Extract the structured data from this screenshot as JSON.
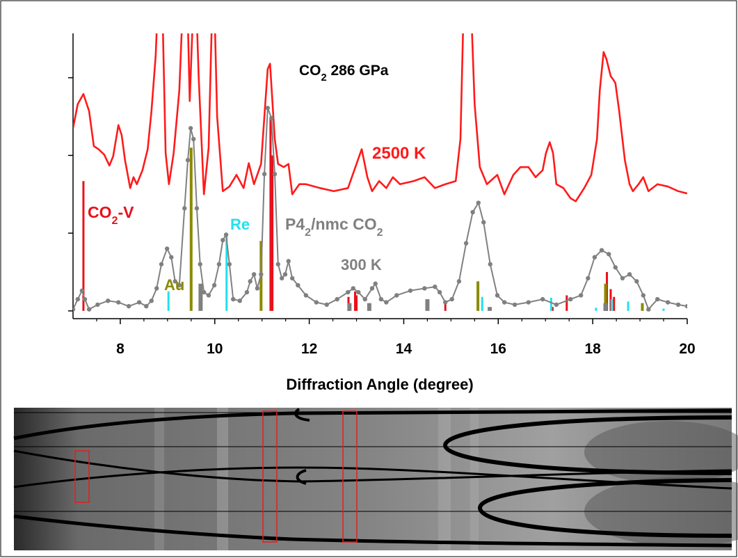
{
  "chart_data": {
    "type": "line",
    "title_parts": [
      "CO",
      "2",
      " 286 GPa"
    ],
    "xlabel": "Diffraction Angle (degree)",
    "xlim": [
      7,
      20
    ],
    "xticks": [
      8,
      10,
      12,
      14,
      16,
      18,
      20
    ],
    "x_minor_ticks": [
      7.5,
      8.5,
      9,
      9.5,
      10.5,
      11,
      11.5,
      12.5,
      13,
      13.5,
      14.5,
      15,
      15.5,
      16.5,
      17,
      17.5,
      18.5,
      19,
      19.5
    ],
    "ylim": [
      -0.1,
      3.57
    ],
    "yticks": [
      0,
      1,
      2,
      3
    ],
    "series": [
      {
        "name": "2500 K",
        "color": "#ff1a1a",
        "markers": false,
        "x": [
          7.0,
          7.1,
          7.22,
          7.34,
          7.44,
          7.54,
          7.66,
          7.77,
          7.85,
          7.96,
          8.03,
          8.1,
          8.21,
          8.28,
          8.35,
          8.47,
          8.58,
          8.66,
          8.75,
          8.83,
          8.87,
          8.96,
          9.03,
          9.13,
          9.25,
          9.36,
          9.4,
          9.47,
          9.58,
          9.66,
          9.77,
          9.87,
          9.97,
          10.05,
          10.17,
          10.31,
          10.46,
          10.61,
          10.72,
          10.83,
          10.98,
          11.12,
          11.17,
          11.27,
          11.34,
          11.46,
          11.56,
          11.64,
          11.79,
          11.93,
          12.23,
          12.52,
          12.82,
          13.11,
          13.23,
          13.33,
          13.48,
          13.63,
          13.77,
          13.92,
          14.21,
          14.44,
          14.66,
          14.88,
          15.1,
          15.2,
          15.29,
          15.39,
          15.5,
          15.61,
          15.76,
          15.98,
          16.13,
          16.32,
          16.47,
          16.64,
          16.79,
          16.94,
          17.01,
          17.09,
          17.16,
          17.23,
          17.38,
          17.53,
          17.64,
          17.82,
          17.97,
          18.09,
          18.15,
          18.23,
          18.29,
          18.38,
          18.44,
          18.48,
          18.56,
          18.68,
          18.78,
          18.85,
          18.97,
          19.07,
          19.18,
          19.37,
          19.59,
          19.81,
          20.0
        ],
        "values": [
          2.35,
          2.66,
          2.79,
          2.57,
          2.12,
          2.08,
          2.01,
          1.87,
          1.99,
          2.39,
          2.26,
          1.94,
          1.58,
          1.72,
          1.63,
          1.81,
          2.08,
          2.57,
          3.29,
          4.5,
          4.5,
          2.03,
          1.63,
          2.03,
          2.84,
          4.5,
          4.5,
          2.7,
          4.5,
          3.0,
          1.5,
          2.1,
          4.5,
          2.5,
          1.54,
          1.6,
          1.75,
          1.58,
          1.9,
          1.63,
          1.89,
          3.11,
          3.18,
          2.21,
          1.89,
          1.85,
          1.89,
          1.5,
          1.63,
          1.63,
          1.58,
          1.54,
          1.58,
          2.08,
          1.72,
          1.54,
          1.67,
          1.58,
          1.72,
          1.63,
          1.67,
          1.72,
          1.58,
          1.63,
          1.67,
          2.21,
          4.5,
          4.5,
          2.66,
          1.85,
          1.63,
          1.75,
          1.5,
          1.75,
          1.85,
          1.85,
          1.72,
          1.81,
          2.03,
          2.17,
          2.03,
          1.63,
          1.58,
          1.45,
          1.41,
          1.58,
          1.75,
          2.21,
          2.84,
          3.33,
          3.24,
          3.02,
          2.97,
          2.93,
          2.57,
          1.94,
          1.63,
          1.54,
          1.63,
          1.72,
          1.54,
          1.63,
          1.6,
          1.54,
          1.51
        ]
      },
      {
        "name": "300 K",
        "color": "#808080",
        "markers": true,
        "x": [
          7.0,
          7.1,
          7.19,
          7.25,
          7.34,
          7.52,
          7.74,
          7.96,
          8.18,
          8.4,
          8.55,
          8.66,
          8.77,
          8.87,
          8.99,
          9.08,
          9.16,
          9.25,
          9.36,
          9.43,
          9.49,
          9.55,
          9.62,
          9.69,
          9.77,
          9.87,
          9.99,
          10.09,
          10.17,
          10.24,
          10.31,
          10.39,
          10.53,
          10.68,
          10.75,
          10.83,
          10.9,
          10.98,
          11.05,
          11.12,
          11.2,
          11.27,
          11.34,
          11.42,
          11.49,
          11.56,
          11.64,
          11.76,
          11.93,
          12.15,
          12.37,
          12.59,
          12.82,
          12.93,
          13.04,
          13.18,
          13.33,
          13.4,
          13.52,
          13.63,
          13.85,
          14.14,
          14.44,
          14.66,
          14.76,
          14.88,
          15.02,
          15.17,
          15.32,
          15.46,
          15.58,
          15.69,
          15.83,
          15.98,
          16.13,
          16.35,
          16.64,
          16.94,
          17.23,
          17.53,
          17.75,
          17.9,
          18.04,
          18.19,
          18.34,
          18.48,
          18.63,
          18.78,
          18.93,
          19.07,
          19.18,
          19.37,
          19.59,
          19.81,
          20.0
        ],
        "values": [
          0.02,
          0.15,
          0.26,
          0.15,
          0.02,
          0.08,
          0.13,
          0.11,
          0.06,
          0.11,
          0.06,
          0.13,
          0.29,
          0.6,
          0.8,
          0.69,
          0.38,
          0.33,
          1.32,
          1.94,
          2.35,
          2.21,
          1.32,
          0.6,
          0.24,
          0.2,
          0.33,
          0.6,
          0.91,
          0.98,
          0.6,
          0.15,
          0.13,
          0.24,
          0.38,
          0.47,
          0.29,
          0.47,
          1.76,
          2.61,
          2.48,
          1.76,
          0.6,
          0.42,
          0.47,
          0.64,
          0.42,
          0.33,
          0.2,
          0.11,
          0.08,
          0.15,
          0.24,
          0.29,
          0.24,
          0.15,
          0.29,
          0.35,
          0.15,
          0.11,
          0.2,
          0.26,
          0.29,
          0.31,
          0.24,
          0.11,
          0.15,
          0.38,
          0.87,
          1.27,
          1.39,
          1.14,
          0.6,
          0.2,
          0.11,
          0.08,
          0.11,
          0.15,
          0.08,
          0.15,
          0.2,
          0.42,
          0.69,
          0.78,
          0.73,
          0.56,
          0.42,
          0.47,
          0.38,
          0.2,
          0.02,
          0.15,
          0.11,
          0.08,
          0.06
        ]
      }
    ],
    "sticks": [
      {
        "name_parts": [
          "CO",
          "2",
          "-V"
        ],
        "color": "#e8101a",
        "x": [
          7.22,
          11.18,
          11.22,
          12.83,
          12.97,
          13.0,
          14.88,
          17.15,
          17.45,
          18.3,
          18.38,
          18.45
        ],
        "values": [
          1.67,
          2.48,
          2.0,
          0.18,
          0.25,
          0.2,
          0.12,
          0.05,
          0.2,
          0.5,
          0.28,
          0.18
        ]
      },
      {
        "name_parts": [
          "Au"
        ],
        "color": "#8a8a00",
        "x": [
          9.5,
          10.98,
          15.57,
          18.27,
          19.05
        ],
        "values": [
          2.1,
          0.9,
          0.38,
          0.35,
          0.1
        ]
      },
      {
        "name_parts": [
          "Re"
        ],
        "color": "#22e0ee",
        "x": [
          9.02,
          10.25,
          15.66,
          17.12,
          18.07,
          18.4,
          18.75,
          19.5
        ],
        "values": [
          0.25,
          0.98,
          0.18,
          0.17,
          0.04,
          0.15,
          0.12,
          0.03
        ]
      },
      {
        "name_parts": [
          "P4",
          "2",
          "/nmc CO",
          "2"
        ],
        "color": "#808080",
        "x": [
          9.7,
          12.85,
          13.27,
          14.5,
          15.82,
          18.27
        ],
        "values": [
          0.35,
          0.1,
          0.1,
          0.15,
          0.05,
          0.1
        ]
      }
    ]
  }
}
